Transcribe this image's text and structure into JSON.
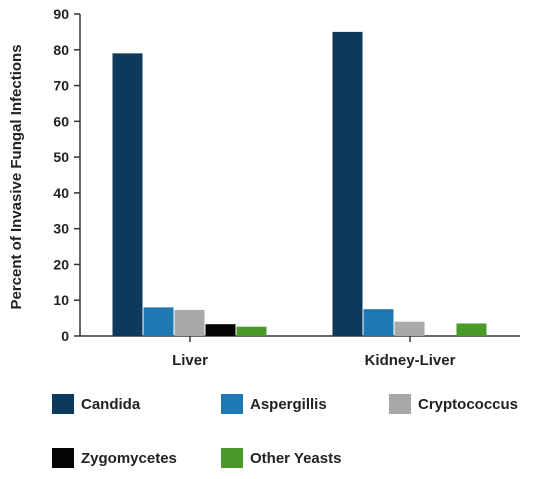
{
  "chart_data": {
    "type": "bar",
    "title": "",
    "xlabel": "",
    "ylabel": "Percent of Invasive Fungal Infections",
    "ylim": [
      0,
      90
    ],
    "yticks": [
      0,
      10,
      20,
      30,
      40,
      50,
      60,
      70,
      80,
      90
    ],
    "categories": [
      "Liver",
      "Kidney-Liver"
    ],
    "series": [
      {
        "name": "Candida",
        "color": "#0d3a5c",
        "values": [
          79,
          85
        ]
      },
      {
        "name": "Aspergillis",
        "color": "#1f78b4",
        "values": [
          8,
          7.5
        ]
      },
      {
        "name": "Cryptococcus",
        "color": "#a9a9a9",
        "values": [
          7.3,
          4
        ]
      },
      {
        "name": "Zygomycetes",
        "color": "#050505",
        "values": [
          3.3,
          0
        ]
      },
      {
        "name": "Other Yeasts",
        "color": "#4a9a2a",
        "values": [
          2.6,
          3.5
        ]
      }
    ],
    "grid": false,
    "legend_position": "bottom"
  }
}
